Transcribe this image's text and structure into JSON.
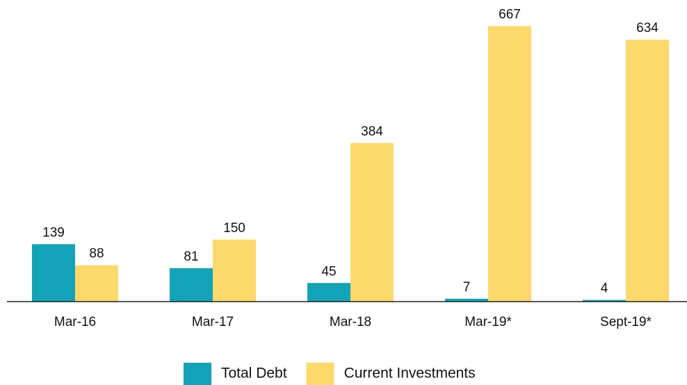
{
  "chart_data": {
    "type": "bar",
    "categories": [
      "Mar-16",
      "Mar-17",
      "Mar-18",
      "Mar-19*",
      "Sept-19*"
    ],
    "series": [
      {
        "name": "Total Debt",
        "color": "#12a3b8",
        "values": [
          139,
          81,
          45,
          7,
          4
        ]
      },
      {
        "name": "Current Investments",
        "color": "#fdd86a",
        "values": [
          88,
          150,
          384,
          667,
          634
        ]
      }
    ],
    "ylim": [
      0,
      700
    ]
  }
}
